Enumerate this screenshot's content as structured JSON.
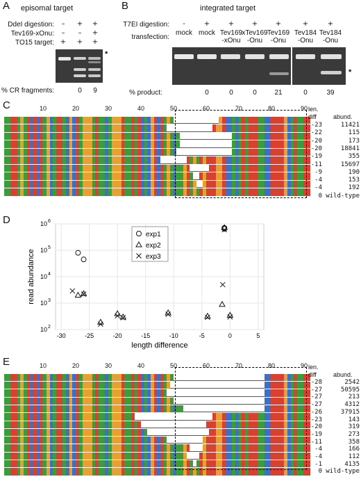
{
  "panelA": {
    "letter": "A",
    "title": "episomal target",
    "row_labels": [
      "DdeI digestion:",
      "Tev169-xOnu:",
      "TO15 target:"
    ],
    "signs": [
      [
        "–",
        "+",
        "+"
      ],
      [
        "–",
        "–",
        "+"
      ],
      [
        "+",
        "+",
        "+"
      ]
    ],
    "asterisk": "*",
    "footer_label": "% CR fragments:",
    "footer_values": [
      "0",
      "9"
    ]
  },
  "panelB": {
    "letter": "B",
    "title": "integrated target",
    "row_labels": [
      "T7EI digestion:",
      "transfection:"
    ],
    "digest_signs": [
      "-",
      "+",
      "+",
      "+",
      "+",
      "+",
      "+"
    ],
    "lanes": [
      "mock",
      "mock",
      "Tev169\n-xOnu",
      "xTev169\n-Onu",
      "Tev169\n-Onu",
      "Tev184\n-Onu",
      "Tev184\n-Onu"
    ],
    "asterisk": "*",
    "footer_label": "% product:",
    "footer_values": [
      "0",
      "0",
      "0",
      "21",
      "0",
      "39"
    ]
  },
  "panelC": {
    "letter": "C",
    "ruler": [
      "10",
      "20",
      "30",
      "40",
      "50",
      "60",
      "70",
      "80",
      "90"
    ],
    "col_headers": [
      "len.\ndiff",
      "abund."
    ],
    "rows": [
      {
        "diff": "-23",
        "abund": "11421"
      },
      {
        "diff": "-22",
        "abund": "115"
      },
      {
        "diff": "-20",
        "abund": "173"
      },
      {
        "diff": "-20",
        "abund": "18841"
      },
      {
        "diff": "-19",
        "abund": "355"
      },
      {
        "diff": "-11",
        "abund": "15697"
      },
      {
        "diff": "-9",
        "abund": "190"
      },
      {
        "diff": "-4",
        "abund": "153"
      },
      {
        "diff": "-4",
        "abund": "192"
      },
      {
        "diff": "0",
        "abund": "wild-type"
      }
    ]
  },
  "panelD": {
    "letter": "D",
    "chart_data": {
      "type": "scatter",
      "xlabel": "length difference",
      "ylabel": "read abundance",
      "xlim": [
        -31,
        6
      ],
      "ylim_log10": [
        2,
        6
      ],
      "log_y": true,
      "grid": true,
      "legend_placement": "top-center",
      "x_ticks": [
        "-30",
        "-25",
        "-20",
        "-15",
        "-10",
        "-5",
        "0",
        "5"
      ],
      "y_ticks": [
        "10",
        "10",
        "10",
        "10",
        "10"
      ],
      "y_tick_exponents": [
        "2",
        "3",
        "4",
        "5",
        "6"
      ],
      "series": [
        {
          "name": "exp1",
          "marker": "circle",
          "points": [
            [
              -27,
              80000
            ],
            [
              -26,
              45000
            ],
            [
              -1,
              650000
            ],
            [
              -1,
              700000
            ]
          ]
        },
        {
          "name": "exp2",
          "marker": "triangle",
          "points": [
            [
              -27,
              2000
            ],
            [
              -26,
              2300
            ],
            [
              -23,
              190
            ],
            [
              -20,
              400
            ],
            [
              -19,
              300
            ],
            [
              -11,
              430
            ],
            [
              -4,
              320
            ],
            [
              -1.4,
              900
            ],
            [
              0,
              350
            ],
            [
              -1,
              720000
            ]
          ]
        },
        {
          "name": "exp3",
          "marker": "x",
          "points": [
            [
              -28,
              2900
            ],
            [
              -26,
              2200
            ],
            [
              -23,
              160
            ],
            [
              -20,
              330
            ],
            [
              -19,
              280
            ],
            [
              -11,
              380
            ],
            [
              -4,
              290
            ],
            [
              -1.3,
              5000
            ],
            [
              0,
              300
            ],
            [
              -1,
              600000
            ]
          ]
        }
      ]
    }
  },
  "panelE": {
    "letter": "E",
    "ruler": [
      "10",
      "20",
      "30",
      "40",
      "50",
      "60",
      "70",
      "80",
      "90"
    ],
    "col_headers": [
      "len.\ndiff",
      "abund."
    ],
    "rows": [
      {
        "diff": "-28",
        "abund": "2542"
      },
      {
        "diff": "-27",
        "abund": "50595"
      },
      {
        "diff": "-27",
        "abund": "213"
      },
      {
        "diff": "-27",
        "abund": "4312"
      },
      {
        "diff": "-26",
        "abund": "37915"
      },
      {
        "diff": "-23",
        "abund": "143"
      },
      {
        "diff": "-20",
        "abund": "319"
      },
      {
        "diff": "-19",
        "abund": "273"
      },
      {
        "diff": "-11",
        "abund": "358"
      },
      {
        "diff": "-4",
        "abund": "166"
      },
      {
        "diff": "-4",
        "abund": "112"
      },
      {
        "diff": "-1",
        "abund": "4135"
      },
      {
        "diff": "0",
        "abund": "wild-type"
      }
    ]
  },
  "colors": {
    "A": "#3b9c3b",
    "T": "#d94030",
    "C": "#3c6fc8",
    "G": "#e8a030",
    "gel": "#3a3a3a",
    "grid": "#e6e6e6"
  }
}
